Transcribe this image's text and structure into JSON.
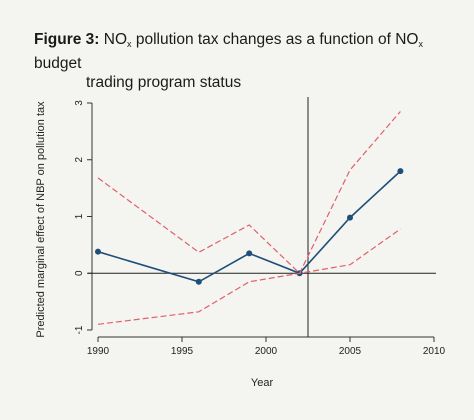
{
  "figure": {
    "label": "Figure 3:",
    "title_parts": [
      {
        "t": "NO"
      },
      {
        "sub": "x"
      },
      {
        "t": " pollution tax changes as a function of NO"
      },
      {
        "sub": "x"
      },
      {
        "t": " budget"
      }
    ],
    "title_line2": "trading program status"
  },
  "chart_data": {
    "type": "line",
    "xlabel": "Year",
    "ylabel": "Predicted marginal effect of NBP on pollution tax",
    "xlim": [
      1990,
      2010
    ],
    "ylim": [
      -1,
      3
    ],
    "xticks": [
      1990,
      1995,
      2000,
      2005,
      2010
    ],
    "yticks": [
      -1,
      0,
      1,
      2,
      3
    ],
    "grid": false,
    "reference_lines": {
      "y": 0,
      "x": 2002.5
    },
    "series": [
      {
        "style": "solid-markers",
        "color": "#1f4e79",
        "x": [
          1990,
          1996,
          1999,
          2002,
          2005,
          2008
        ],
        "y": [
          0.38,
          -0.15,
          0.35,
          0.0,
          0.98,
          1.8
        ]
      },
      {
        "style": "dashed",
        "color": "#e0606a",
        "x": [
          1990,
          1996,
          1999,
          2002,
          2005,
          2008
        ],
        "y": [
          1.68,
          0.37,
          0.85,
          0.0,
          1.82,
          2.85
        ]
      },
      {
        "style": "dashed",
        "color": "#e0606a",
        "x": [
          1990,
          1996,
          1999,
          2002,
          2005,
          2008
        ],
        "y": [
          -0.9,
          -0.68,
          -0.15,
          0.0,
          0.15,
          0.78
        ]
      }
    ]
  }
}
